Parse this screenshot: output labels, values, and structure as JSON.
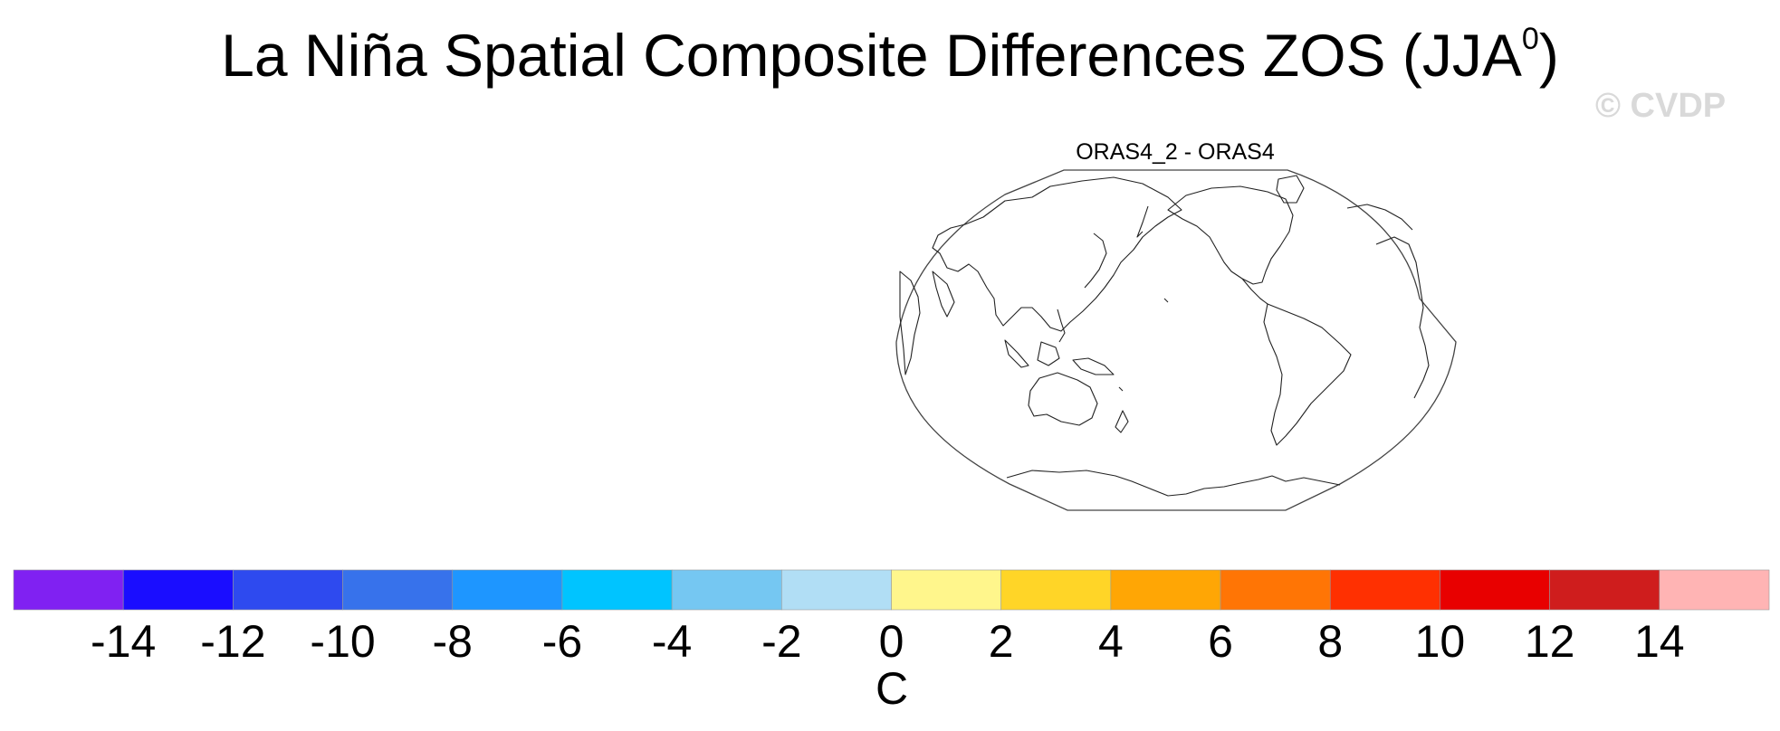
{
  "title": {
    "main": "La Niña Spatial Composite Differences ZOS (JJA",
    "superscript": "0",
    "close": ")"
  },
  "watermark": "© CVDP",
  "panel": {
    "label": "ORAS4_2 - ORAS4",
    "projection": "robinson",
    "center_longitude": 180,
    "coastline_color": "#222222"
  },
  "colorbar": {
    "colors": [
      "#8021f2",
      "#1a0dff",
      "#2e4aef",
      "#3772eb",
      "#1e96ff",
      "#00c4ff",
      "#75c7f2",
      "#b1def5",
      "#fff68c",
      "#ffd527",
      "#ffa605",
      "#ff7505",
      "#ff3001",
      "#e80000",
      "#cf1d1d",
      "#ffb4b4"
    ],
    "tick_labels": [
      "-14",
      "-12",
      "-10",
      "-8",
      "-6",
      "-4",
      "-2",
      "0",
      "2",
      "4",
      "6",
      "8",
      "10",
      "12",
      "14"
    ],
    "unit": "C"
  }
}
